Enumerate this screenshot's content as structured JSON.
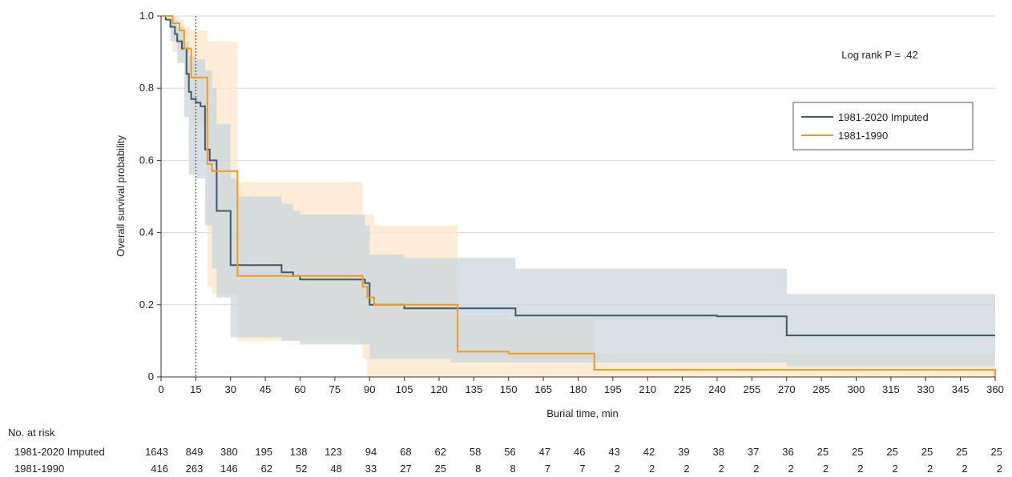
{
  "chart_data": {
    "type": "line",
    "subtype": "kaplan-meier step curves with confidence bands",
    "xlabel": "Burial time, min",
    "ylabel": "Overall survival probability",
    "xlim": [
      0,
      360
    ],
    "ylim": [
      0,
      1.0
    ],
    "xticks": [
      0,
      15,
      30,
      45,
      60,
      75,
      90,
      105,
      120,
      135,
      150,
      165,
      180,
      195,
      210,
      225,
      240,
      255,
      270,
      285,
      300,
      315,
      330,
      345,
      360
    ],
    "yticks": [
      0,
      0.2,
      0.4,
      0.6,
      0.8,
      1.0
    ],
    "ytick_labels": [
      "0",
      "0.2",
      "0.4",
      "0.6",
      "0.8",
      "1.0"
    ],
    "grid": "horizontal",
    "reference_line_x": 15,
    "annotation": "Log rank P = .42",
    "legend_position": "right",
    "colors": {
      "imputed": "#3d5a6b",
      "period": "#f39a1f",
      "imputed_band": "#c8d5dc",
      "period_band": "#fde4c4",
      "grid": "#d9d9d9"
    },
    "series": [
      {
        "name": "1981-2020 Imputed",
        "steps": [
          [
            0,
            1.0
          ],
          [
            2,
            0.99
          ],
          [
            4,
            0.97
          ],
          [
            6,
            0.95
          ],
          [
            7,
            0.93
          ],
          [
            9,
            0.91
          ],
          [
            11,
            0.84
          ],
          [
            12,
            0.79
          ],
          [
            13,
            0.77
          ],
          [
            15,
            0.76
          ],
          [
            17,
            0.75
          ],
          [
            19,
            0.63
          ],
          [
            21,
            0.6
          ],
          [
            22,
            0.6
          ],
          [
            24,
            0.46
          ],
          [
            30,
            0.31
          ],
          [
            52,
            0.29
          ],
          [
            57,
            0.28
          ],
          [
            60,
            0.27
          ],
          [
            88,
            0.26
          ],
          [
            90,
            0.2
          ],
          [
            105,
            0.19
          ],
          [
            120,
            0.19
          ],
          [
            153,
            0.17
          ],
          [
            240,
            0.168
          ],
          [
            270,
            0.115
          ],
          [
            360,
            0.115
          ]
        ],
        "band": [
          [
            0,
            1.0,
            1.0
          ],
          [
            4,
            0.99,
            0.93
          ],
          [
            7,
            0.97,
            0.87
          ],
          [
            10,
            0.93,
            0.72
          ],
          [
            12,
            0.89,
            0.56
          ],
          [
            15,
            0.88,
            0.55
          ],
          [
            19,
            0.85,
            0.42
          ],
          [
            22,
            0.8,
            0.3
          ],
          [
            24,
            0.7,
            0.22
          ],
          [
            30,
            0.55,
            0.11
          ],
          [
            33,
            0.5,
            0.11
          ],
          [
            52,
            0.48,
            0.1
          ],
          [
            57,
            0.46,
            0.1
          ],
          [
            60,
            0.45,
            0.09
          ],
          [
            88,
            0.42,
            0.09
          ],
          [
            90,
            0.34,
            0.05
          ],
          [
            105,
            0.33,
            0.05
          ],
          [
            125,
            0.33,
            0.04
          ],
          [
            153,
            0.3,
            0.04
          ],
          [
            240,
            0.3,
            0.04
          ],
          [
            270,
            0.23,
            0.03
          ],
          [
            360,
            0.23,
            0.03
          ]
        ]
      },
      {
        "name": "1981-1990",
        "steps": [
          [
            0,
            1.0
          ],
          [
            5,
            0.98
          ],
          [
            8,
            0.96
          ],
          [
            10,
            0.91
          ],
          [
            13,
            0.83
          ],
          [
            20,
            0.59
          ],
          [
            22,
            0.57
          ],
          [
            33,
            0.28
          ],
          [
            60,
            0.28
          ],
          [
            87,
            0.25
          ],
          [
            89,
            0.22
          ],
          [
            92,
            0.2
          ],
          [
            128,
            0.07
          ],
          [
            150,
            0.065
          ],
          [
            187,
            0.02
          ],
          [
            360,
            0.02
          ],
          [
            360,
            0.0
          ]
        ],
        "band": [
          [
            0,
            1.0,
            1.0
          ],
          [
            5,
            1.0,
            0.9
          ],
          [
            8,
            0.99,
            0.87
          ],
          [
            10,
            0.97,
            0.8
          ],
          [
            13,
            0.96,
            0.7
          ],
          [
            20,
            0.93,
            0.25
          ],
          [
            22,
            0.93,
            0.23
          ],
          [
            33,
            0.54,
            0.1
          ],
          [
            60,
            0.54,
            0.1
          ],
          [
            87,
            0.45,
            0.05
          ],
          [
            89,
            0.45,
            0.0
          ],
          [
            92,
            0.42,
            0.0
          ],
          [
            128,
            0.17,
            0.0
          ],
          [
            150,
            0.16,
            0.0
          ],
          [
            187,
            0.065,
            0.0
          ],
          [
            360,
            0.065,
            0.0
          ]
        ]
      }
    ]
  },
  "risk_table": {
    "title": "No. at risk",
    "rows": [
      {
        "label": "1981-2020 Imputed",
        "values": [
          "1643",
          "849",
          "380",
          "195",
          "138",
          "123",
          "94",
          "68",
          "62",
          "58",
          "56",
          "47",
          "46",
          "43",
          "42",
          "39",
          "38",
          "37",
          "36",
          "25",
          "25",
          "25",
          "25",
          "25",
          "25"
        ]
      },
      {
        "label": "1981-1990",
        "values": [
          "416",
          "263",
          "146",
          "62",
          "52",
          "48",
          "33",
          "27",
          "25",
          "8",
          "8",
          "7",
          "7",
          "2",
          "2",
          "2",
          "2",
          "2",
          "2",
          "2",
          "2",
          "2",
          "2",
          "2",
          "2"
        ]
      }
    ]
  }
}
